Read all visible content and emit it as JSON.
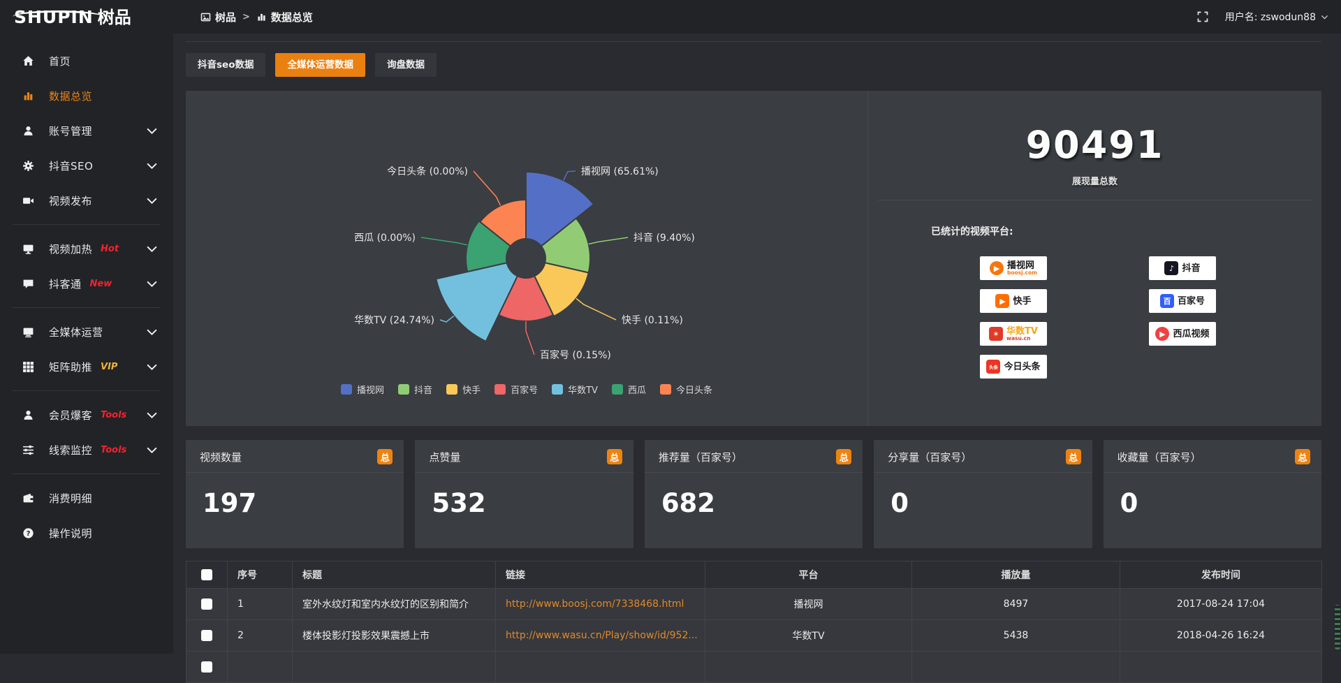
{
  "topbar": {
    "logo_text": "SHUPIN",
    "logo_cn": "树品",
    "breadcrumb": [
      {
        "icon": "photo",
        "label": "树品"
      },
      {
        "icon": "bars",
        "label": "数据总览"
      }
    ],
    "breadcrumb_sep": ">",
    "username": "用户名: zswodun88"
  },
  "sidebar": {
    "items": [
      {
        "key": "home",
        "icon": "home",
        "label": "首页"
      },
      {
        "key": "data-overview",
        "icon": "bars",
        "label": "数据总览",
        "active": true
      },
      {
        "key": "account-management",
        "icon": "user",
        "label": "账号管理",
        "chevron": true
      },
      {
        "key": "douyin-seo",
        "icon": "gear",
        "label": "抖音SEO",
        "chevron": true
      },
      {
        "key": "video-publish",
        "icon": "video",
        "label": "视频发布",
        "chevron": true,
        "divider_after": true
      },
      {
        "key": "video-heat",
        "icon": "screen",
        "label": "视频加热",
        "flag": "Hot",
        "flag_color": "#f5222d",
        "chevron": true
      },
      {
        "key": "douketong",
        "icon": "chat",
        "label": "抖客通",
        "flag": "New",
        "flag_color": "#f5222d",
        "chevron": true,
        "divider_after": true
      },
      {
        "key": "media-operation",
        "icon": "monitor",
        "label": "全媒体运营",
        "chevron": true
      },
      {
        "key": "matrix-boost",
        "icon": "grid",
        "label": "矩阵助推",
        "flag": "VIP",
        "flag_color": "#efb336",
        "chevron": true,
        "divider_after": true
      },
      {
        "key": "member-burst",
        "icon": "user",
        "label": "会员爆客",
        "flag": "Tools",
        "flag_color": "#f5222d",
        "chevron": true
      },
      {
        "key": "clue-monitor",
        "icon": "sliders",
        "label": "线索监控",
        "flag": "Tools",
        "flag_color": "#f5222d",
        "chevron": true,
        "divider_after": true
      },
      {
        "key": "consumption-detail",
        "icon": "wallet",
        "label": "消费明细"
      },
      {
        "key": "instructions",
        "icon": "question",
        "label": "操作说明"
      }
    ]
  },
  "tabs": [
    {
      "key": "douyin-seo-data",
      "label": "抖音seo数据",
      "active": false
    },
    {
      "key": "media-operation-data",
      "label": "全媒体运营数据",
      "active": true
    },
    {
      "key": "inquiry-data",
      "label": "询盘数据",
      "active": false
    }
  ],
  "chart_data": {
    "type": "pie",
    "subtype": "nightingale-rose",
    "title": "",
    "series": [
      {
        "name": "播视网",
        "value": 65.61
      },
      {
        "name": "抖音",
        "value": 9.4
      },
      {
        "name": "快手",
        "value": 0.11
      },
      {
        "name": "百家号",
        "value": 0.15
      },
      {
        "name": "华数TV",
        "value": 24.74
      },
      {
        "name": "西瓜",
        "value": 0.0
      },
      {
        "name": "今日头条",
        "value": 0.0
      }
    ],
    "labels": [
      "播视网 (65.61%)",
      "抖音 (9.40%)",
      "快手 (0.11%)",
      "百家号 (0.15%)",
      "华数TV (24.74%)",
      "西瓜 (0.00%)",
      "今日头条 (0.00%)"
    ],
    "colors": [
      "#5470c6",
      "#91cc75",
      "#fac858",
      "#ee6666",
      "#73c0de",
      "#3ba272",
      "#fc8452"
    ],
    "legend": [
      "播视网",
      "抖音",
      "快手",
      "百家号",
      "华数TV",
      "西瓜",
      "今日头条"
    ],
    "legend_position": "bottom"
  },
  "summary": {
    "total": "90491",
    "total_caption": "展现量总数",
    "platforms_label": "已统计的视频平台:",
    "badges_left": [
      {
        "name": "播视网",
        "sub": "boosj.com",
        "sub_color": "#f7760c",
        "glyph": "▶",
        "shape": "circle",
        "icon_color": "#f7760c"
      },
      {
        "name": "快手",
        "glyph": "▶",
        "shape": "square",
        "icon_color": "#ff6e00"
      },
      {
        "name": "华数TV",
        "sub": "wasu.cn",
        "sub_color": "#e03a28",
        "name_color": "#f0a818",
        "glyph": "✶",
        "shape": "square",
        "icon_color": "#e03a28"
      },
      {
        "name": "今日头条",
        "glyph": "头条",
        "glyph_small": true,
        "shape": "square",
        "icon_color": "#ee3423"
      }
    ],
    "badges_right": [
      {
        "name": "抖音",
        "glyph": "♪",
        "shape": "square",
        "icon_color": "#161623"
      },
      {
        "name": "百家号",
        "glyph": "百",
        "shape": "square",
        "icon_color": "#315efb"
      },
      {
        "name": "西瓜视频",
        "glyph": "▶",
        "shape": "circle",
        "icon_color": "#f04142"
      }
    ]
  },
  "stat_cards": [
    {
      "key": "video-count",
      "label": "视频数量",
      "badge": "总",
      "value": "197"
    },
    {
      "key": "like-count",
      "label": "点赞量",
      "badge": "总",
      "value": "532"
    },
    {
      "key": "recommend",
      "label": "推荐量（百家号）",
      "badge": "总",
      "value": "682"
    },
    {
      "key": "share-count",
      "label": "分享量（百家号）",
      "badge": "总",
      "value": "0"
    },
    {
      "key": "collect-count",
      "label": "收藏量（百家号）",
      "badge": "总",
      "value": "0"
    }
  ],
  "table": {
    "headers": [
      "序号",
      "标题",
      "链接",
      "平台",
      "播放量",
      "发布时间"
    ],
    "rows": [
      {
        "no": "1",
        "title": "室外水纹灯和室内水纹灯的区别和简介",
        "link": "http://www.boosj.com/7338468.html",
        "platform": "播视网",
        "plays": "8497",
        "time": "2017-08-24 17:04"
      },
      {
        "no": "2",
        "title": "楼体投影灯投影效果震撼上市",
        "link": "http://www.wasu.cn/Play/show/id/952...",
        "platform": "华数TV",
        "plays": "5438",
        "time": "2018-04-26 16:24"
      }
    ]
  }
}
